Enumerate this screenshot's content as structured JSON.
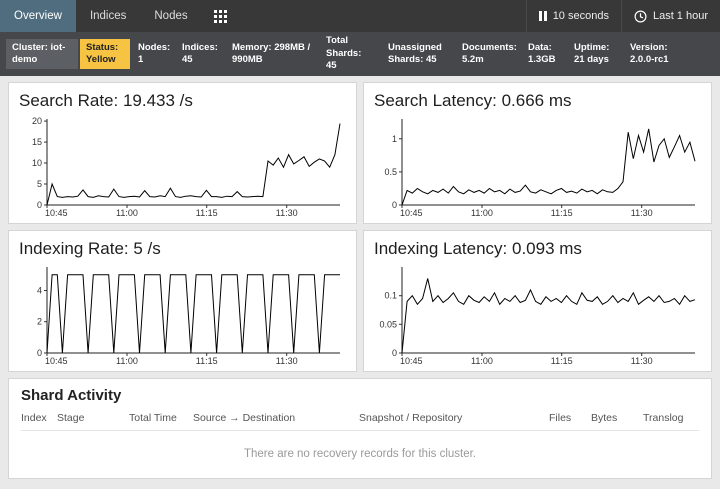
{
  "navbar": {
    "tabs": [
      {
        "label": "Overview",
        "active": true
      },
      {
        "label": "Indices",
        "active": false
      },
      {
        "label": "Nodes",
        "active": false
      }
    ],
    "refresh_interval": "10 seconds",
    "time_range": "Last 1 hour"
  },
  "icons": {
    "pause": "pause-icon",
    "clock": "clock-icon",
    "grid": "apps-grid-icon"
  },
  "colors": {
    "navbar_bg": "#383838",
    "active_tab_bg": "#4f6d7f",
    "statusbar_bg": "#45474b",
    "status_yellow": "#f6c342",
    "chart_line": "#000000",
    "panel_bg": "#ffffff"
  },
  "status_bar": {
    "items": [
      {
        "label": "Cluster:",
        "value": "iot-demo"
      },
      {
        "label": "Status:",
        "value": "Yellow"
      },
      {
        "label": "Nodes:",
        "value": "1"
      },
      {
        "label": "Indices:",
        "value": "45"
      },
      {
        "label": "Memory:",
        "value": "298MB / 990MB"
      },
      {
        "label": "Total Shards:",
        "value": "45"
      },
      {
        "label": "Unassigned Shards:",
        "value": "45"
      },
      {
        "label": "Documents:",
        "value": "5.2m"
      },
      {
        "label": "Data:",
        "value": "1.3GB"
      },
      {
        "label": "Uptime:",
        "value": "21 days"
      },
      {
        "label": "Version:",
        "value": "2.0.0-rc1"
      }
    ]
  },
  "chart_data": [
    {
      "type": "line",
      "title": "Search Rate: 19.433 /s",
      "ylabel": "/s",
      "ylim": [
        0,
        20.5
      ],
      "yticks": [
        0,
        5,
        10,
        15,
        20
      ],
      "xticks": [
        "10:45",
        "11:00",
        "11:15",
        "11:30"
      ],
      "xtick_pos": [
        0,
        0.273,
        0.545,
        0.818
      ],
      "values": [
        0,
        5,
        2,
        1.8,
        2,
        1.9,
        2.1,
        3.6,
        2,
        1.8,
        2.2,
        2,
        1.9,
        3.8,
        2,
        1.8,
        2,
        2.1,
        1.9,
        3.4,
        2,
        1.9,
        2.2,
        2,
        4,
        2,
        1.8,
        2.1,
        2.2,
        2,
        1.9,
        3.5,
        2,
        2,
        1.8,
        2.1,
        2,
        3.2,
        2,
        1.9,
        2,
        2.1,
        2,
        10.5,
        9.5,
        11.2,
        9,
        12,
        9.8,
        10.6,
        11.5,
        9.2,
        10.2,
        11,
        10.5,
        9,
        12,
        19.4
      ]
    },
    {
      "type": "line",
      "title": "Search Latency: 0.666 ms",
      "ylabel": "ms",
      "ylim": [
        0,
        1.3
      ],
      "yticks": [
        0,
        0.5,
        1
      ],
      "xticks": [
        "10:45",
        "11:00",
        "11:15",
        "11:30"
      ],
      "xtick_pos": [
        0,
        0.273,
        0.545,
        0.818
      ],
      "values": [
        0,
        0.22,
        0.18,
        0.25,
        0.2,
        0.17,
        0.22,
        0.19,
        0.24,
        0.18,
        0.28,
        0.2,
        0.17,
        0.23,
        0.19,
        0.22,
        0.18,
        0.25,
        0.2,
        0.22,
        0.17,
        0.24,
        0.19,
        0.21,
        0.3,
        0.2,
        0.18,
        0.23,
        0.2,
        0.17,
        0.22,
        0.25,
        0.19,
        0.21,
        0.18,
        0.24,
        0.2,
        0.22,
        0.17,
        0.23,
        0.2,
        0.19,
        0.25,
        0.35,
        1.1,
        0.7,
        1.05,
        0.8,
        1.15,
        0.65,
        0.9,
        1.0,
        0.72,
        0.88,
        1.05,
        0.8,
        0.95,
        0.66
      ]
    },
    {
      "type": "line",
      "title": "Indexing Rate: 5 /s",
      "ylabel": "/s",
      "ylim": [
        0,
        5.5
      ],
      "yticks": [
        0,
        2,
        4
      ],
      "xticks": [
        "10:45",
        "11:00",
        "11:15",
        "11:30"
      ],
      "xtick_pos": [
        0,
        0.273,
        0.545,
        0.818
      ],
      "values": [
        0,
        5,
        5,
        0,
        5,
        5,
        5,
        5,
        0,
        5,
        5,
        5,
        5,
        0,
        5,
        5,
        5,
        5,
        0,
        5,
        5,
        5,
        5,
        0,
        5,
        5,
        5,
        5,
        0,
        5,
        5,
        5,
        5,
        0,
        5,
        5,
        5,
        5,
        0,
        5,
        5,
        5,
        5,
        0,
        5,
        5,
        5,
        5,
        0,
        5,
        5,
        5,
        5,
        0,
        5,
        5,
        5,
        5
      ]
    },
    {
      "type": "line",
      "title": "Indexing Latency: 0.093 ms",
      "ylabel": "ms",
      "ylim": [
        0,
        0.15
      ],
      "yticks": [
        0,
        0.05,
        0.1
      ],
      "xticks": [
        "10:45",
        "11:00",
        "11:15",
        "11:30"
      ],
      "xtick_pos": [
        0,
        0.273,
        0.545,
        0.818
      ],
      "values": [
        0,
        0.09,
        0.1,
        0.085,
        0.095,
        0.13,
        0.09,
        0.1,
        0.088,
        0.095,
        0.105,
        0.09,
        0.085,
        0.1,
        0.092,
        0.088,
        0.098,
        0.09,
        0.105,
        0.085,
        0.095,
        0.09,
        0.1,
        0.088,
        0.092,
        0.11,
        0.09,
        0.085,
        0.098,
        0.09,
        0.095,
        0.088,
        0.1,
        0.09,
        0.085,
        0.105,
        0.092,
        0.09,
        0.098,
        0.085,
        0.09,
        0.1,
        0.088,
        0.095,
        0.09,
        0.105,
        0.085,
        0.092,
        0.098,
        0.09,
        0.1,
        0.088,
        0.09,
        0.095,
        0.085,
        0.1,
        0.09,
        0.093
      ]
    }
  ],
  "shard_activity": {
    "title": "Shard Activity",
    "columns": [
      "Index",
      "Stage",
      "Total Time",
      "Source → Destination",
      "Snapshot / Repository",
      "Files",
      "Bytes",
      "Translog"
    ],
    "empty_message": "There are no recovery records for this cluster."
  }
}
